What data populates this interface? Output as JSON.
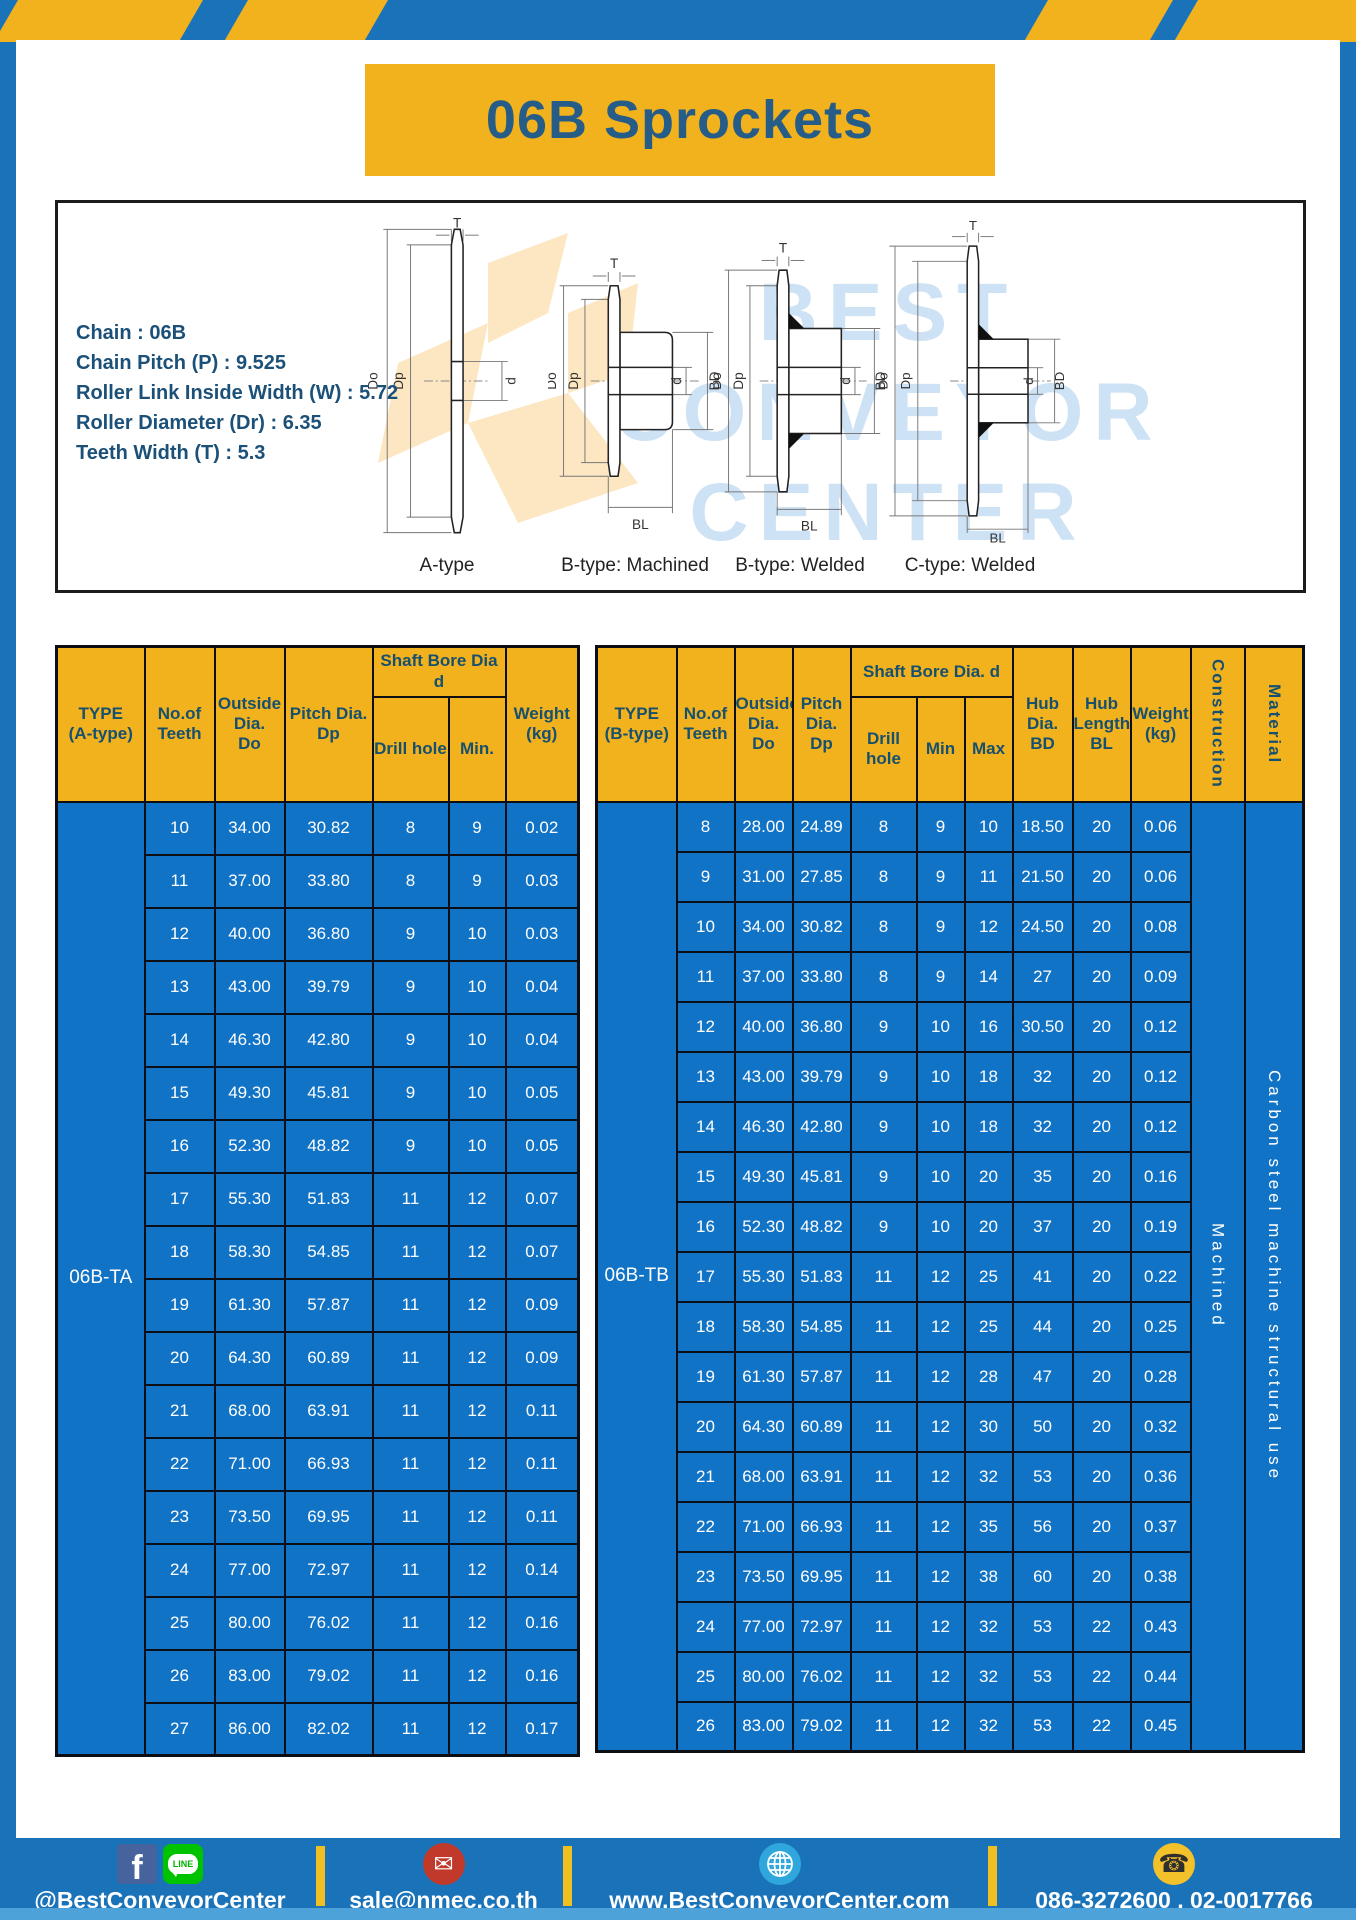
{
  "page": {
    "title": "06B Sprockets"
  },
  "colors": {
    "frame_blue": "#1a73b9",
    "cell_blue": "#1173c6",
    "accent_yellow": "#f2b21d",
    "dark_text": "#1b5078",
    "footer_strip": "#4da3d9"
  },
  "specs": {
    "lines": [
      "Chain : 06B",
      "Chain Pitch (P) : 9.525",
      "Roller Link Inside Width (W) : 5.72",
      "Roller Diameter (Dr) : 6.35",
      "Teeth Width (T) : 5.3"
    ]
  },
  "watermark": [
    "BEST",
    "CONVEYOR",
    "CENTER"
  ],
  "diagrams": {
    "captions": [
      "A-type",
      "B-type: Machined",
      "B-type: Welded",
      "C-type: Welded"
    ],
    "dims": {
      "t": "T",
      "do": "Do",
      "dp": "Dp",
      "d": "d",
      "bd": "BD",
      "bl": "BL"
    }
  },
  "table_a": {
    "header": {
      "type": [
        "TYPE",
        "(A-type)"
      ],
      "teeth": [
        "No.of",
        "Teeth"
      ],
      "outside": [
        "Outside",
        "Dia.",
        "Do"
      ],
      "pitch": [
        "Pitch Dia.",
        "Dp"
      ],
      "shaft_bore": "Shaft Bore Dia d",
      "drill": "Drill hole",
      "min": "Min.",
      "weight": [
        "Weight",
        "(kg)"
      ]
    },
    "type_value": "06B-TA",
    "rows": [
      [
        "10",
        "34.00",
        "30.82",
        "8",
        "9",
        "0.02"
      ],
      [
        "11",
        "37.00",
        "33.80",
        "8",
        "9",
        "0.03"
      ],
      [
        "12",
        "40.00",
        "36.80",
        "9",
        "10",
        "0.03"
      ],
      [
        "13",
        "43.00",
        "39.79",
        "9",
        "10",
        "0.04"
      ],
      [
        "14",
        "46.30",
        "42.80",
        "9",
        "10",
        "0.04"
      ],
      [
        "15",
        "49.30",
        "45.81",
        "9",
        "10",
        "0.05"
      ],
      [
        "16",
        "52.30",
        "48.82",
        "9",
        "10",
        "0.05"
      ],
      [
        "17",
        "55.30",
        "51.83",
        "11",
        "12",
        "0.07"
      ],
      [
        "18",
        "58.30",
        "54.85",
        "11",
        "12",
        "0.07"
      ],
      [
        "19",
        "61.30",
        "57.87",
        "11",
        "12",
        "0.09"
      ],
      [
        "20",
        "64.30",
        "60.89",
        "11",
        "12",
        "0.09"
      ],
      [
        "21",
        "68.00",
        "63.91",
        "11",
        "12",
        "0.11"
      ],
      [
        "22",
        "71.00",
        "66.93",
        "11",
        "12",
        "0.11"
      ],
      [
        "23",
        "73.50",
        "69.95",
        "11",
        "12",
        "0.11"
      ],
      [
        "24",
        "77.00",
        "72.97",
        "11",
        "12",
        "0.14"
      ],
      [
        "25",
        "80.00",
        "76.02",
        "11",
        "12",
        "0.16"
      ],
      [
        "26",
        "83.00",
        "79.02",
        "11",
        "12",
        "0.16"
      ],
      [
        "27",
        "86.00",
        "82.02",
        "11",
        "12",
        "0.17"
      ]
    ]
  },
  "table_b": {
    "header": {
      "type": [
        "TYPE",
        "(B-type)"
      ],
      "teeth": [
        "No.of",
        "Teeth"
      ],
      "outside": [
        "Outside",
        "Dia.",
        "Do"
      ],
      "pitch": [
        "Pitch",
        "Dia.",
        "Dp"
      ],
      "shaft_bore": "Shaft Bore Dia. d",
      "drill": "Drill hole",
      "min": "Min",
      "max": "Max",
      "hub_dia": [
        "Hub",
        "Dia.",
        "BD"
      ],
      "hub_len": [
        "Hub",
        "Length",
        "BL"
      ],
      "weight": [
        "Weight",
        "(kg)"
      ],
      "construction": "Construction",
      "material": "Material"
    },
    "type_value": "06B-TB",
    "construction_value": "Machined",
    "material_value": "Carbon steel machine structural use",
    "rows": [
      [
        "8",
        "28.00",
        "24.89",
        "8",
        "9",
        "10",
        "18.50",
        "20",
        "0.06"
      ],
      [
        "9",
        "31.00",
        "27.85",
        "8",
        "9",
        "11",
        "21.50",
        "20",
        "0.06"
      ],
      [
        "10",
        "34.00",
        "30.82",
        "8",
        "9",
        "12",
        "24.50",
        "20",
        "0.08"
      ],
      [
        "11",
        "37.00",
        "33.80",
        "8",
        "9",
        "14",
        "27",
        "20",
        "0.09"
      ],
      [
        "12",
        "40.00",
        "36.80",
        "9",
        "10",
        "16",
        "30.50",
        "20",
        "0.12"
      ],
      [
        "13",
        "43.00",
        "39.79",
        "9",
        "10",
        "18",
        "32",
        "20",
        "0.12"
      ],
      [
        "14",
        "46.30",
        "42.80",
        "9",
        "10",
        "18",
        "32",
        "20",
        "0.12"
      ],
      [
        "15",
        "49.30",
        "45.81",
        "9",
        "10",
        "20",
        "35",
        "20",
        "0.16"
      ],
      [
        "16",
        "52.30",
        "48.82",
        "9",
        "10",
        "20",
        "37",
        "20",
        "0.19"
      ],
      [
        "17",
        "55.30",
        "51.83",
        "11",
        "12",
        "25",
        "41",
        "20",
        "0.22"
      ],
      [
        "18",
        "58.30",
        "54.85",
        "11",
        "12",
        "25",
        "44",
        "20",
        "0.25"
      ],
      [
        "19",
        "61.30",
        "57.87",
        "11",
        "12",
        "28",
        "47",
        "20",
        "0.28"
      ],
      [
        "20",
        "64.30",
        "60.89",
        "11",
        "12",
        "30",
        "50",
        "20",
        "0.32"
      ],
      [
        "21",
        "68.00",
        "63.91",
        "11",
        "12",
        "32",
        "53",
        "20",
        "0.36"
      ],
      [
        "22",
        "71.00",
        "66.93",
        "11",
        "12",
        "35",
        "56",
        "20",
        "0.37"
      ],
      [
        "23",
        "73.50",
        "69.95",
        "11",
        "12",
        "38",
        "60",
        "20",
        "0.38"
      ],
      [
        "24",
        "77.00",
        "72.97",
        "11",
        "12",
        "32",
        "53",
        "22",
        "0.43"
      ],
      [
        "25",
        "80.00",
        "76.02",
        "11",
        "12",
        "32",
        "53",
        "22",
        "0.44"
      ],
      [
        "26",
        "83.00",
        "79.02",
        "11",
        "12",
        "32",
        "53",
        "22",
        "0.45"
      ]
    ]
  },
  "footer": {
    "line_label": "LINE",
    "facebook_f": "f",
    "email_glyph": "✉",
    "phone_glyph": "☎",
    "items": [
      {
        "name": "social",
        "text": "@BestConveyorCenter"
      },
      {
        "name": "email",
        "text": "sale@nmec.co.th"
      },
      {
        "name": "website",
        "text": "www.BestConveyorCenter.com"
      },
      {
        "name": "phone",
        "text": "086-3272600 , 02-0017766"
      }
    ]
  }
}
